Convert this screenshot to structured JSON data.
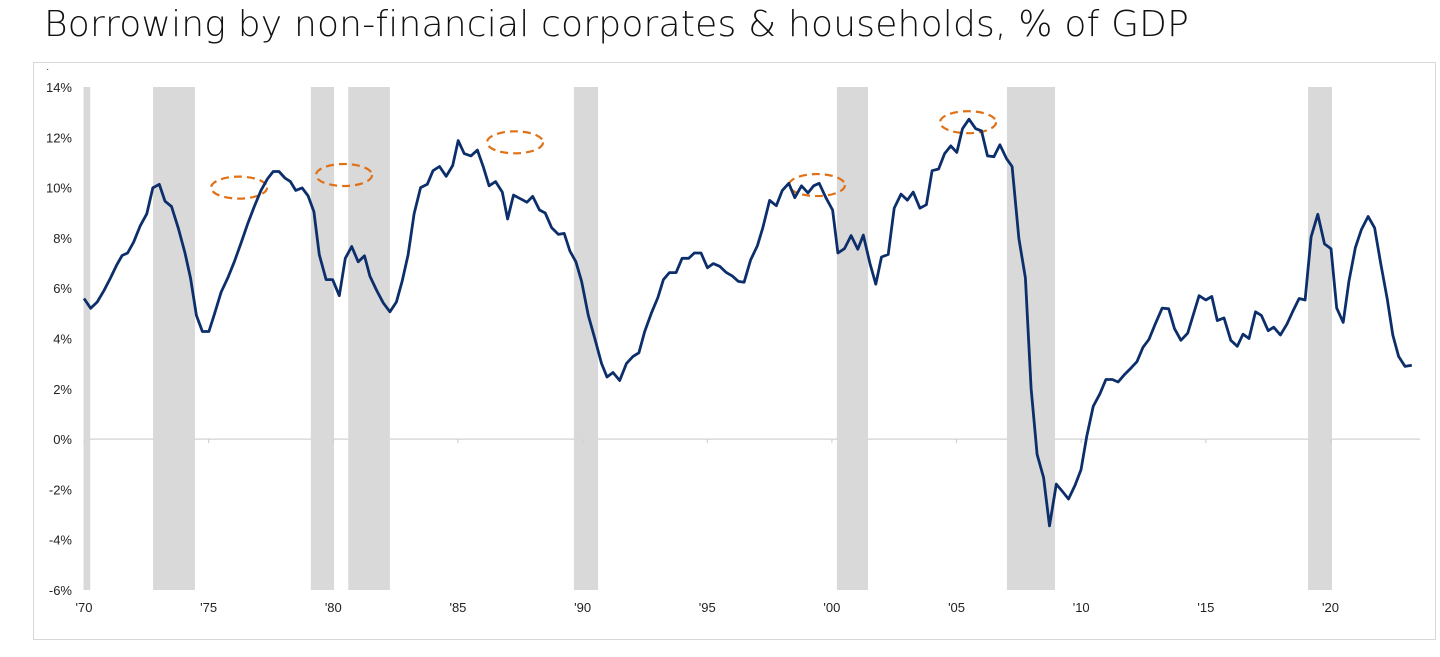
{
  "title": "Borrowing by non-financial corporates & households, % of GDP",
  "chart_data": {
    "type": "line",
    "title": "Borrowing by non-financial corporates & households, % of GDP",
    "xlabel": "",
    "ylabel": "",
    "xlim": [
      1970,
      2023.5
    ],
    "ylim": [
      -6,
      14
    ],
    "grid": false,
    "legend": "none",
    "y_ticks": [
      "14%",
      "12%",
      "10%",
      "8%",
      "6%",
      "4%",
      "2%",
      "0%",
      "-2%",
      "-4%",
      "-6%"
    ],
    "y_tick_values": [
      14,
      12,
      10,
      8,
      6,
      4,
      2,
      0,
      -2,
      -4,
      -6
    ],
    "x_ticks": [
      "'70",
      "'75",
      "'80",
      "'85",
      "'90",
      "'95",
      "'00",
      "'05",
      "'10",
      "'15",
      "'20"
    ],
    "x_tick_values": [
      1970,
      1975,
      1980,
      1985,
      1990,
      1995,
      2000,
      2005,
      2010,
      2015,
      2020
    ],
    "colors": {
      "line": "#0c2f6b",
      "recession": "#d9d9d9",
      "annotation": "#e07015",
      "zero_line": "#d9d9d9"
    },
    "recession_shading": [
      [
        1970.0,
        1970.25
      ],
      [
        1972.77,
        1974.45
      ],
      [
        1979.1,
        1980.03
      ],
      [
        1980.6,
        1982.27
      ],
      [
        1989.65,
        1990.62
      ],
      [
        2000.2,
        2001.45
      ],
      [
        2007.02,
        2008.95
      ],
      [
        2019.1,
        2020.06
      ]
    ],
    "annotations_dashed_ellipses": [
      {
        "x": 1976.22,
        "y": 10.0
      },
      {
        "x": 1980.43,
        "y": 10.5
      },
      {
        "x": 1987.29,
        "y": 11.8
      },
      {
        "x": 1999.4,
        "y": 10.1
      },
      {
        "x": 2005.46,
        "y": 12.6
      }
    ],
    "series": [
      {
        "x": [
          1970.0,
          1970.27,
          1970.53,
          1970.8,
          1971.06,
          1971.3,
          1971.53,
          1971.75,
          1971.99,
          1972.25,
          1972.52,
          1972.76,
          1973.02,
          1973.25,
          1973.51,
          1973.78,
          1974.05,
          1974.27,
          1974.51,
          1974.75,
          1975.01,
          1975.24,
          1975.5,
          1975.77,
          1976.03,
          1976.3,
          1976.56,
          1976.83,
          1977.1,
          1977.36,
          1977.59,
          1977.82,
          1978.06,
          1978.28,
          1978.49,
          1978.75,
          1978.99,
          1979.22,
          1979.44,
          1979.71,
          1979.97,
          1980.24,
          1980.48,
          1980.74,
          1981.0,
          1981.25,
          1981.47,
          1981.74,
          1982.0,
          1982.27,
          1982.53,
          1982.76,
          1983.0,
          1983.24,
          1983.5,
          1983.77,
          1984.0,
          1984.26,
          1984.53,
          1984.79,
          1985.01,
          1985.25,
          1985.52,
          1985.78,
          1986.02,
          1986.25,
          1986.51,
          1986.78,
          1986.99,
          1987.23,
          1987.5,
          1987.77,
          1988.0,
          1988.27,
          1988.5,
          1988.76,
          1989.03,
          1989.26,
          1989.49,
          1989.73,
          1989.96,
          1990.23,
          1990.49,
          1990.76,
          1990.98,
          1991.22,
          1991.49,
          1991.76,
          1992.02,
          1992.26,
          1992.49,
          1992.75,
          1993.02,
          1993.24,
          1993.48,
          1993.75,
          1993.99,
          1994.26,
          1994.48,
          1994.75,
          1995.01,
          1995.24,
          1995.5,
          1995.77,
          1996.01,
          1996.25,
          1996.48,
          1996.74,
          1997.01,
          1997.23,
          1997.5,
          1997.77,
          1998.01,
          1998.27,
          1998.51,
          1998.78,
          1999.04,
          1999.27,
          1999.49,
          1999.76,
          2000.03,
          2000.24,
          2000.5,
          2000.77,
          2001.04,
          2001.26,
          2001.53,
          2001.76,
          2001.99,
          2002.26,
          2002.5,
          2002.77,
          2003.03,
          2003.26,
          2003.53,
          2003.79,
          2004.02,
          2004.28,
          2004.52,
          2004.77,
          2005.01,
          2005.24,
          2005.5,
          2005.77,
          2006.0,
          2006.24,
          2006.5,
          2006.74,
          2007.0,
          2007.23,
          2007.5,
          2007.76,
          2007.99,
          2008.23,
          2008.49,
          2008.73,
          2009.0,
          2009.26,
          2009.49,
          2009.75,
          2009.99,
          2010.22,
          2010.48,
          2010.75,
          2010.99,
          2011.25,
          2011.48,
          2011.75,
          2012.01,
          2012.24,
          2012.48,
          2012.72,
          2012.98,
          2013.25,
          2013.51,
          2013.74,
          2014.0,
          2014.27,
          2014.5,
          2014.73,
          2015.0,
          2015.24,
          2015.46,
          2015.73,
          2016.0,
          2016.26,
          2016.49,
          2016.73,
          2016.99,
          2017.23,
          2017.5,
          2017.72,
          2017.99,
          2018.25,
          2018.48,
          2018.74,
          2018.98,
          2019.22,
          2019.49,
          2019.76,
          2020.02,
          2020.25,
          2020.51,
          2020.74,
          2021.0,
          2021.24,
          2021.51,
          2021.77,
          2022.01,
          2022.28,
          2022.5,
          2022.73,
          2022.99,
          2023.26
        ],
        "values": [
          5.59,
          5.2,
          5.45,
          5.9,
          6.4,
          6.9,
          7.3,
          7.4,
          7.83,
          8.47,
          8.96,
          9.99,
          10.13,
          9.46,
          9.25,
          8.4,
          7.4,
          6.41,
          4.92,
          4.28,
          4.28,
          4.99,
          5.84,
          6.41,
          7.05,
          7.8,
          8.54,
          9.25,
          9.89,
          10.35,
          10.64,
          10.64,
          10.38,
          10.24,
          9.89,
          9.99,
          9.67,
          9.04,
          7.33,
          6.34,
          6.34,
          5.7,
          7.19,
          7.66,
          7.05,
          7.29,
          6.48,
          5.91,
          5.42,
          5.06,
          5.45,
          6.27,
          7.33,
          8.96,
          10.0,
          10.13,
          10.67,
          10.84,
          10.45,
          10.88,
          11.87,
          11.35,
          11.26,
          11.49,
          10.81,
          10.07,
          10.24,
          9.82,
          8.75,
          9.7,
          9.56,
          9.42,
          9.65,
          9.11,
          8.99,
          8.4,
          8.14,
          8.18,
          7.48,
          7.05,
          6.27,
          4.92,
          4.0,
          3.01,
          2.47,
          2.65,
          2.33,
          3.01,
          3.29,
          3.43,
          4.28,
          4.99,
          5.63,
          6.34,
          6.62,
          6.62,
          7.19,
          7.19,
          7.4,
          7.4,
          6.81,
          6.98,
          6.87,
          6.62,
          6.48,
          6.27,
          6.24,
          7.12,
          7.69,
          8.4,
          9.49,
          9.28,
          9.89,
          10.17,
          9.6,
          10.07,
          9.79,
          10.07,
          10.17,
          9.6,
          9.11,
          7.4,
          7.57,
          8.09,
          7.55,
          8.11,
          6.98,
          6.16,
          7.24,
          7.34,
          9.18,
          9.74,
          9.5,
          9.82,
          9.18,
          9.32,
          10.67,
          10.74,
          11.35,
          11.66,
          11.4,
          12.34,
          12.72,
          12.34,
          12.26,
          11.26,
          11.23,
          11.7,
          11.16,
          10.84,
          7.97,
          6.41,
          2.01,
          -0.61,
          -1.53,
          -3.45,
          -1.79,
          -2.1,
          -2.38,
          -1.84,
          -1.22,
          0.1,
          1.3,
          1.8,
          2.37,
          2.37,
          2.27,
          2.58,
          2.84,
          3.08,
          3.65,
          3.97,
          4.6,
          5.21,
          5.18,
          4.4,
          3.93,
          4.21,
          4.96,
          5.7,
          5.53,
          5.67,
          4.71,
          4.82,
          3.93,
          3.69,
          4.17,
          4.0,
          5.06,
          4.92,
          4.31,
          4.45,
          4.14,
          4.57,
          5.06,
          5.59,
          5.53,
          8.04,
          8.94,
          7.76,
          7.57,
          5.21,
          4.64,
          6.27,
          7.62,
          8.33,
          8.85,
          8.4,
          7.01,
          5.56,
          4.14,
          3.29,
          2.89,
          2.94
        ]
      }
    ]
  }
}
